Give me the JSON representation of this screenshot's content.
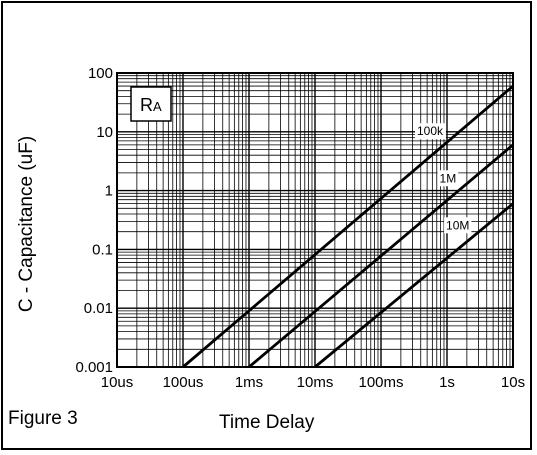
{
  "figure_label": "Figure 3",
  "colors": {
    "line": "#000000",
    "grid": "#000000",
    "background": "#ffffff"
  },
  "chart_data": {
    "type": "line",
    "title": "",
    "xlabel": "Time Delay",
    "ylabel": "C - Capacitance (uF)",
    "x_scale": "log",
    "y_scale": "log",
    "xlim": [
      "10us",
      "10s"
    ],
    "ylim": [
      0.001,
      100
    ],
    "grid": true,
    "x_ticks": [
      {
        "label": "10us",
        "value": "10us"
      },
      {
        "label": "100us",
        "value": "100us"
      },
      {
        "label": "1ms",
        "value": "1ms"
      },
      {
        "label": "10ms",
        "value": "10ms"
      },
      {
        "label": "100ms",
        "value": "100ms"
      },
      {
        "label": "1s",
        "value": "1s"
      },
      {
        "label": "10s",
        "value": "10s"
      }
    ],
    "y_ticks": [
      {
        "label": "100",
        "value": 100
      },
      {
        "label": "10",
        "value": 10
      },
      {
        "label": "1",
        "value": 1
      },
      {
        "label": "0.1",
        "value": 0.1
      },
      {
        "label": "0.01",
        "value": 0.01
      },
      {
        "label": "0.001",
        "value": 0.001
      }
    ],
    "legend_box": {
      "label_main": "R",
      "label_sub": "A",
      "placement": "top-left"
    },
    "series": [
      {
        "name": "100k",
        "points": [
          {
            "x": "100us",
            "y": 0.001
          },
          {
            "x": "10s",
            "y": 60
          }
        ]
      },
      {
        "name": "1M",
        "points": [
          {
            "x": "1ms",
            "y": 0.001
          },
          {
            "x": "10s",
            "y": 6
          }
        ]
      },
      {
        "name": "10M",
        "points": [
          {
            "x": "10ms",
            "y": 0.001
          },
          {
            "x": "10s",
            "y": 0.6
          }
        ]
      }
    ]
  }
}
